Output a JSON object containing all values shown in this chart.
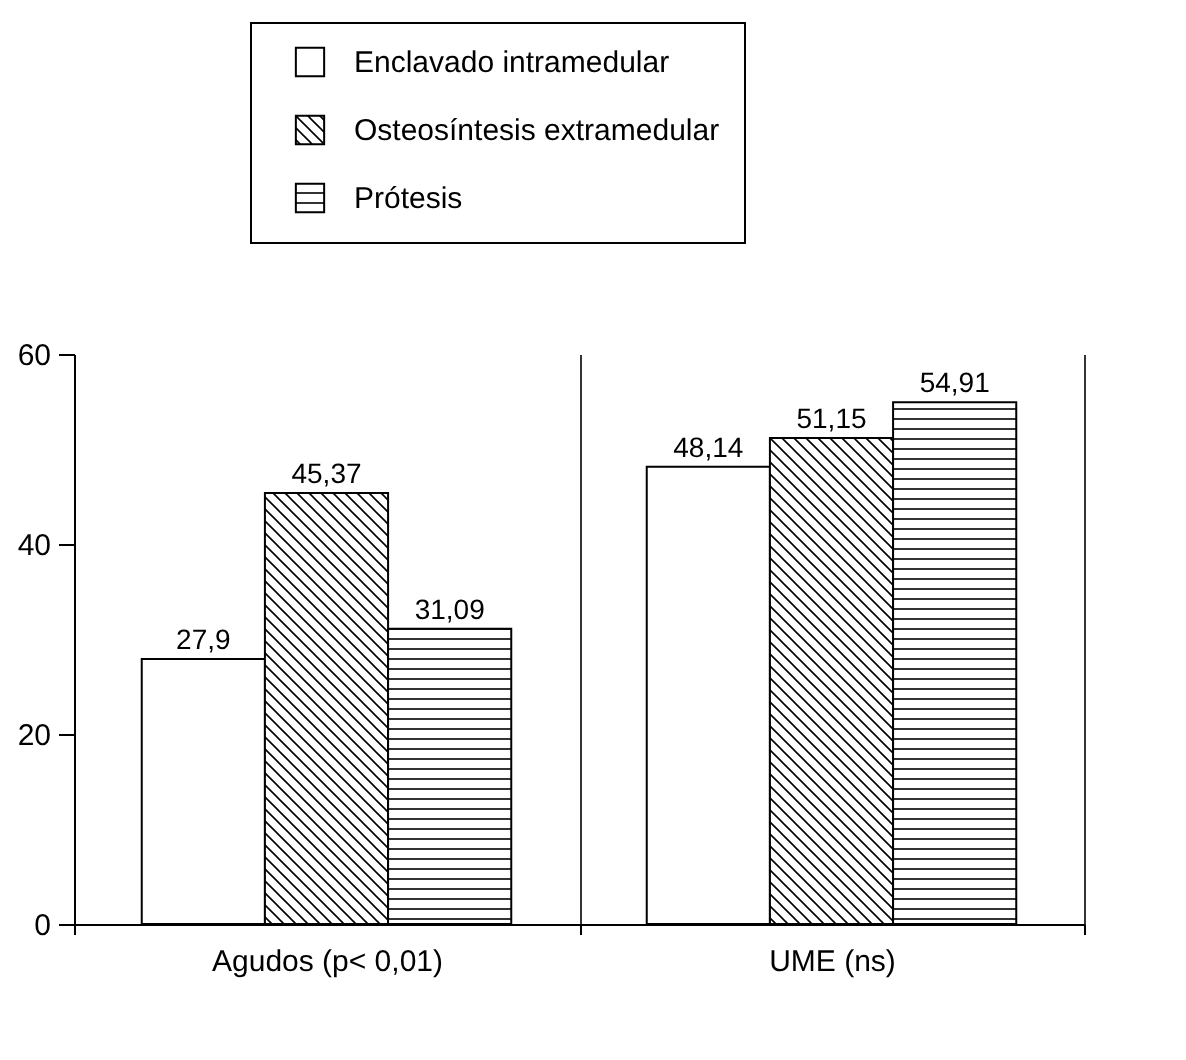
{
  "chart_data": {
    "type": "bar",
    "categories": [
      "Agudos (p< 0,01)",
      "UME (ns)"
    ],
    "series": [
      {
        "name": "Enclavado intramedular",
        "color": "#000000",
        "values": [
          27.9,
          48.14
        ],
        "value_labels": [
          "27,9",
          "48,14"
        ]
      },
      {
        "name": "Osteosíntesis extramedular",
        "color": "#000000",
        "values": [
          45.37,
          51.15
        ],
        "value_labels": [
          "45,37",
          "51,15"
        ]
      },
      {
        "name": "Prótesis",
        "color": "#000000",
        "values": [
          31.09,
          54.91
        ],
        "value_labels": [
          "31,09",
          "54,91"
        ]
      }
    ],
    "ylim": [
      0,
      60
    ],
    "yticks": [
      0,
      20,
      40,
      60
    ],
    "grid": "x",
    "legend": "top"
  }
}
